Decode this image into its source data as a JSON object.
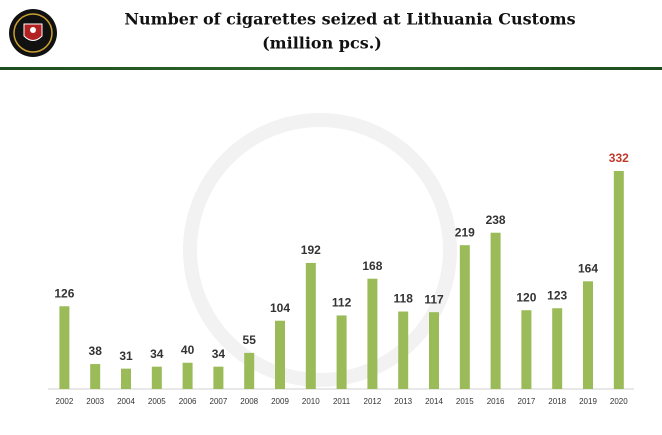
{
  "chart_data": {
    "type": "bar",
    "title": "Number of cigarettes seized at Lithuania Customs",
    "subtitle": "(million pcs.)",
    "categories": [
      "2002",
      "2003",
      "2004",
      "2005",
      "2006",
      "2007",
      "2008",
      "2009",
      "2010",
      "2011",
      "2012",
      "2013",
      "2014",
      "2015",
      "2016",
      "2017",
      "2018",
      "2019",
      "2020"
    ],
    "values": [
      126,
      38,
      31,
      34,
      40,
      34,
      55,
      104,
      192,
      112,
      168,
      118,
      117,
      219,
      238,
      120,
      123,
      164,
      332
    ],
    "color": "#9bbb59",
    "value_label_colors": [
      "#333333",
      "#333333",
      "#333333",
      "#333333",
      "#333333",
      "#333333",
      "#333333",
      "#333333",
      "#333333",
      "#333333",
      "#333333",
      "#333333",
      "#333333",
      "#333333",
      "#333333",
      "#333333",
      "#333333",
      "#333333",
      "#c0392b"
    ]
  }
}
